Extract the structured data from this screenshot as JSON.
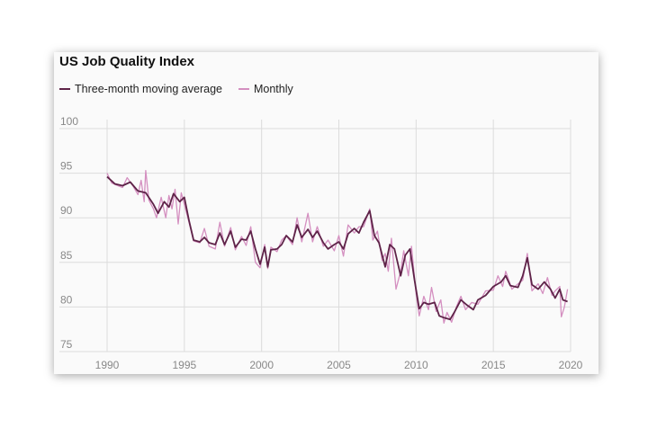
{
  "chart_data": {
    "type": "line",
    "title": "US Job Quality Index",
    "xlabel": "",
    "ylabel": "",
    "xlim": [
      1990,
      2020
    ],
    "ylim": [
      75,
      100
    ],
    "xticks": [
      "1990",
      "1995",
      "2000",
      "2005",
      "2010",
      "2015",
      "2020"
    ],
    "yticks": [
      "100",
      "95",
      "90",
      "85",
      "80",
      "75"
    ],
    "grid": true,
    "legend_position": "top-left",
    "series": [
      {
        "name": "Three-month moving average",
        "color": "#5e2348",
        "points": [
          [
            1990.0,
            94.6
          ],
          [
            1990.5,
            93.8
          ],
          [
            1991.0,
            93.6
          ],
          [
            1991.5,
            94.0
          ],
          [
            1992.0,
            93.0
          ],
          [
            1992.5,
            92.8
          ],
          [
            1993.0,
            91.5
          ],
          [
            1993.3,
            90.5
          ],
          [
            1993.7,
            91.8
          ],
          [
            1994.0,
            91.2
          ],
          [
            1994.3,
            92.7
          ],
          [
            1994.7,
            91.8
          ],
          [
            1995.0,
            92.3
          ],
          [
            1995.3,
            89.7
          ],
          [
            1995.6,
            87.5
          ],
          [
            1996.0,
            87.3
          ],
          [
            1996.3,
            87.8
          ],
          [
            1996.6,
            87.2
          ],
          [
            1997.0,
            87.0
          ],
          [
            1997.3,
            88.3
          ],
          [
            1997.6,
            87.0
          ],
          [
            1998.0,
            88.5
          ],
          [
            1998.3,
            86.7
          ],
          [
            1998.7,
            87.6
          ],
          [
            1999.0,
            87.5
          ],
          [
            1999.3,
            88.5
          ],
          [
            1999.6,
            86.5
          ],
          [
            1999.9,
            84.8
          ],
          [
            2000.2,
            86.7
          ],
          [
            2000.4,
            84.5
          ],
          [
            2000.6,
            86.4
          ],
          [
            2001.0,
            86.5
          ],
          [
            2001.3,
            87.0
          ],
          [
            2001.6,
            88.0
          ],
          [
            2002.0,
            87.3
          ],
          [
            2002.3,
            89.2
          ],
          [
            2002.6,
            87.8
          ],
          [
            2003.0,
            88.7
          ],
          [
            2003.3,
            87.8
          ],
          [
            2003.6,
            88.5
          ],
          [
            2004.0,
            87.2
          ],
          [
            2004.3,
            86.5
          ],
          [
            2004.7,
            87.0
          ],
          [
            2005.0,
            87.3
          ],
          [
            2005.3,
            86.5
          ],
          [
            2005.6,
            88.2
          ],
          [
            2006.0,
            88.8
          ],
          [
            2006.3,
            88.3
          ],
          [
            2006.6,
            89.5
          ],
          [
            2007.0,
            90.8
          ],
          [
            2007.3,
            88.0
          ],
          [
            2007.6,
            87.2
          ],
          [
            2008.0,
            84.5
          ],
          [
            2008.3,
            87.0
          ],
          [
            2008.6,
            86.5
          ],
          [
            2009.0,
            83.5
          ],
          [
            2009.3,
            85.8
          ],
          [
            2009.6,
            86.5
          ],
          [
            2009.9,
            83.0
          ],
          [
            2010.2,
            79.8
          ],
          [
            2010.5,
            80.5
          ],
          [
            2010.8,
            80.3
          ],
          [
            2011.2,
            80.5
          ],
          [
            2011.5,
            79.0
          ],
          [
            2011.8,
            78.8
          ],
          [
            2012.2,
            78.6
          ],
          [
            2012.5,
            79.5
          ],
          [
            2012.9,
            80.8
          ],
          [
            2013.3,
            80.2
          ],
          [
            2013.7,
            79.7
          ],
          [
            2014.0,
            80.8
          ],
          [
            2014.5,
            81.3
          ],
          [
            2015.0,
            82.3
          ],
          [
            2015.5,
            82.8
          ],
          [
            2015.8,
            83.5
          ],
          [
            2016.1,
            82.4
          ],
          [
            2016.6,
            82.2
          ],
          [
            2016.9,
            83.5
          ],
          [
            2017.2,
            85.5
          ],
          [
            2017.5,
            82.5
          ],
          [
            2017.9,
            82.0
          ],
          [
            2018.3,
            82.8
          ],
          [
            2018.7,
            82.0
          ],
          [
            2019.0,
            81.0
          ],
          [
            2019.3,
            82.0
          ],
          [
            2019.5,
            80.8
          ],
          [
            2019.8,
            80.6
          ]
        ]
      },
      {
        "name": "Monthly",
        "color": "#d48fc0",
        "points": [
          [
            1990.0,
            95.0
          ],
          [
            1990.3,
            93.9
          ],
          [
            1990.7,
            93.6
          ],
          [
            1991.0,
            93.4
          ],
          [
            1991.3,
            94.5
          ],
          [
            1991.7,
            93.5
          ],
          [
            1992.0,
            92.6
          ],
          [
            1992.2,
            94.2
          ],
          [
            1992.4,
            91.8
          ],
          [
            1992.5,
            95.3
          ],
          [
            1992.7,
            92.0
          ],
          [
            1993.0,
            91.0
          ],
          [
            1993.2,
            90.0
          ],
          [
            1993.5,
            92.3
          ],
          [
            1993.8,
            90.0
          ],
          [
            1994.0,
            92.5
          ],
          [
            1994.2,
            91.0
          ],
          [
            1994.4,
            93.2
          ],
          [
            1994.6,
            89.3
          ],
          [
            1994.8,
            92.8
          ],
          [
            1995.0,
            91.5
          ],
          [
            1995.3,
            89.5
          ],
          [
            1995.6,
            87.4
          ],
          [
            1996.0,
            87.2
          ],
          [
            1996.3,
            88.8
          ],
          [
            1996.6,
            86.8
          ],
          [
            1997.0,
            86.5
          ],
          [
            1997.3,
            89.5
          ],
          [
            1997.6,
            86.8
          ],
          [
            1998.0,
            88.9
          ],
          [
            1998.3,
            86.4
          ],
          [
            1998.7,
            87.9
          ],
          [
            1999.0,
            86.9
          ],
          [
            1999.3,
            89.0
          ],
          [
            1999.6,
            85.0
          ],
          [
            1999.9,
            84.4
          ],
          [
            2000.2,
            87.0
          ],
          [
            2000.4,
            84.3
          ],
          [
            2000.6,
            86.7
          ],
          [
            2001.0,
            86.2
          ],
          [
            2001.3,
            87.5
          ],
          [
            2001.6,
            88.0
          ],
          [
            2002.0,
            87.0
          ],
          [
            2002.3,
            90.0
          ],
          [
            2002.6,
            87.3
          ],
          [
            2003.0,
            90.5
          ],
          [
            2003.3,
            87.3
          ],
          [
            2003.6,
            89.0
          ],
          [
            2004.0,
            86.8
          ],
          [
            2004.3,
            87.5
          ],
          [
            2004.7,
            86.3
          ],
          [
            2005.0,
            88.0
          ],
          [
            2005.3,
            85.7
          ],
          [
            2005.6,
            89.2
          ],
          [
            2006.0,
            88.3
          ],
          [
            2006.3,
            89.0
          ],
          [
            2006.6,
            89.0
          ],
          [
            2007.0,
            91.0
          ],
          [
            2007.2,
            87.5
          ],
          [
            2007.5,
            88.5
          ],
          [
            2007.8,
            85.2
          ],
          [
            2008.0,
            86.0
          ],
          [
            2008.2,
            84.0
          ],
          [
            2008.4,
            87.7
          ],
          [
            2008.7,
            82.0
          ],
          [
            2009.0,
            84.0
          ],
          [
            2009.2,
            86.3
          ],
          [
            2009.5,
            83.5
          ],
          [
            2009.7,
            86.8
          ],
          [
            2010.0,
            81.5
          ],
          [
            2010.2,
            79.0
          ],
          [
            2010.5,
            81.2
          ],
          [
            2010.8,
            79.7
          ],
          [
            2011.0,
            82.2
          ],
          [
            2011.3,
            79.5
          ],
          [
            2011.6,
            80.8
          ],
          [
            2011.8,
            78.2
          ],
          [
            2012.0,
            79.4
          ],
          [
            2012.3,
            78.3
          ],
          [
            2012.6,
            80.0
          ],
          [
            2012.9,
            81.2
          ],
          [
            2013.2,
            79.7
          ],
          [
            2013.6,
            80.5
          ],
          [
            2014.0,
            80.3
          ],
          [
            2014.5,
            81.8
          ],
          [
            2015.0,
            81.9
          ],
          [
            2015.3,
            83.5
          ],
          [
            2015.6,
            82.3
          ],
          [
            2015.8,
            84.0
          ],
          [
            2016.2,
            82.0
          ],
          [
            2016.6,
            82.6
          ],
          [
            2016.9,
            83.0
          ],
          [
            2017.2,
            86.0
          ],
          [
            2017.5,
            81.8
          ],
          [
            2017.9,
            82.6
          ],
          [
            2018.2,
            81.5
          ],
          [
            2018.5,
            83.3
          ],
          [
            2018.8,
            81.3
          ],
          [
            2019.0,
            81.8
          ],
          [
            2019.3,
            82.3
          ],
          [
            2019.4,
            78.9
          ],
          [
            2019.6,
            80.0
          ],
          [
            2019.8,
            82.0
          ]
        ]
      }
    ]
  }
}
